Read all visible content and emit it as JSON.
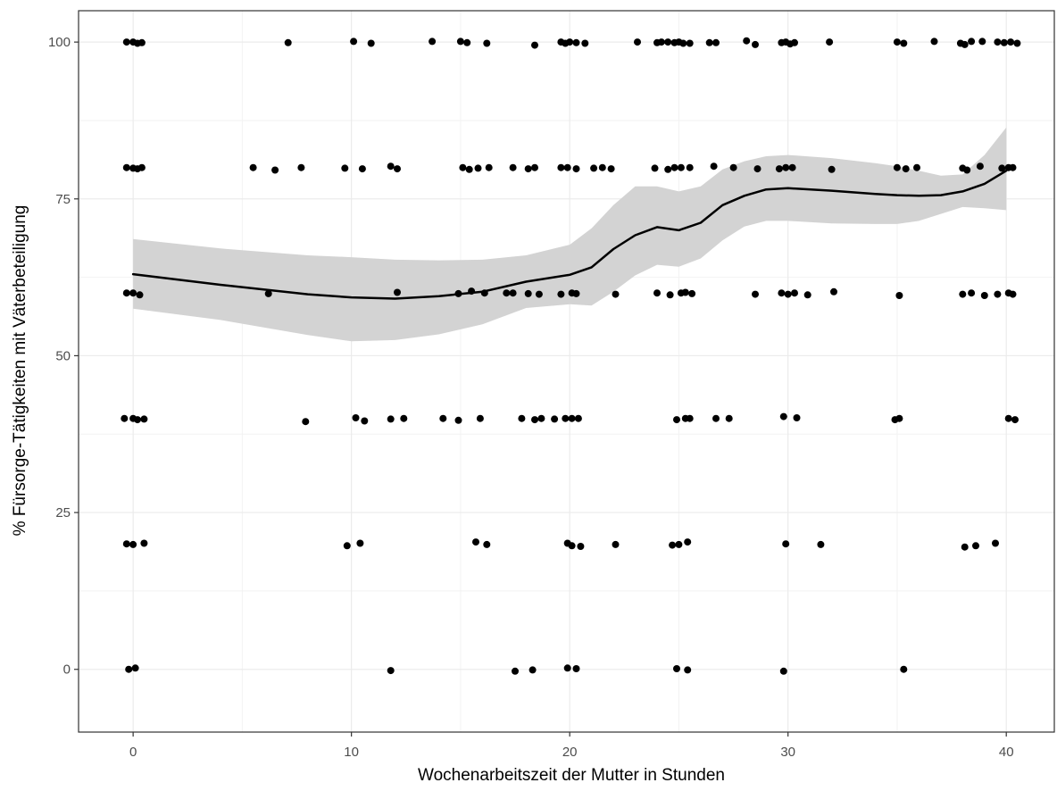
{
  "chart_data": {
    "type": "scatter",
    "title": "",
    "xlabel": "Wochenarbeitszeit der Mutter in Stunden",
    "ylabel": "% Fürsorge-Tätigkeiten mit Väterbeteiligung",
    "xlim": [
      -2.5,
      42.2
    ],
    "ylim": [
      -10,
      105
    ],
    "x_ticks": [
      0,
      10,
      20,
      30,
      40
    ],
    "x_tick_labels": [
      "0",
      "10",
      "20",
      "30",
      "40"
    ],
    "y_ticks": [
      0,
      25,
      50,
      75,
      100
    ],
    "y_tick_labels": [
      "0",
      "25",
      "50",
      "75",
      "100"
    ],
    "grid": true,
    "legend": "none",
    "colors": {
      "points": "#000000",
      "smooth_line": "#000000",
      "confidence_band": "#d3d3d3",
      "grid_major": "#ebebeb",
      "grid_minor": "#f2f2f2",
      "panel_border": "#333333"
    },
    "series": [
      {
        "type": "scatter",
        "points": [
          [
            -0.3,
            100
          ],
          [
            0,
            100
          ],
          [
            0.2,
            99.8
          ],
          [
            0.4,
            99.9
          ],
          [
            7.1,
            99.9
          ],
          [
            10.1,
            100.1
          ],
          [
            10.9,
            99.8
          ],
          [
            13.7,
            100.1
          ],
          [
            15,
            100.1
          ],
          [
            15.3,
            99.9
          ],
          [
            16.2,
            99.8
          ],
          [
            18.4,
            99.5
          ],
          [
            19.6,
            100
          ],
          [
            19.8,
            99.8
          ],
          [
            20,
            100
          ],
          [
            20.3,
            99.9
          ],
          [
            20.7,
            99.8
          ],
          [
            23.1,
            100
          ],
          [
            24,
            99.9
          ],
          [
            24.2,
            100
          ],
          [
            24.5,
            100
          ],
          [
            24.8,
            99.9
          ],
          [
            25,
            100
          ],
          [
            25.2,
            99.8
          ],
          [
            25.5,
            99.8
          ],
          [
            26.4,
            99.9
          ],
          [
            26.7,
            99.9
          ],
          [
            28.1,
            100.2
          ],
          [
            28.5,
            99.6
          ],
          [
            29.7,
            99.9
          ],
          [
            29.9,
            100
          ],
          [
            30.1,
            99.7
          ],
          [
            30.3,
            99.9
          ],
          [
            31.9,
            100
          ],
          [
            35,
            100
          ],
          [
            35.3,
            99.8
          ],
          [
            36.7,
            100.1
          ],
          [
            37.9,
            99.8
          ],
          [
            38.1,
            99.6
          ],
          [
            38.4,
            100.1
          ],
          [
            38.9,
            100.1
          ],
          [
            39.6,
            100
          ],
          [
            39.9,
            99.9
          ],
          [
            40.2,
            100
          ],
          [
            40.5,
            99.8
          ],
          [
            -0.3,
            80
          ],
          [
            0,
            79.9
          ],
          [
            0.2,
            79.8
          ],
          [
            0.4,
            80
          ],
          [
            5.5,
            80
          ],
          [
            6.5,
            79.6
          ],
          [
            7.7,
            80
          ],
          [
            9.7,
            79.9
          ],
          [
            10.5,
            79.8
          ],
          [
            11.8,
            80.2
          ],
          [
            12.1,
            79.8
          ],
          [
            15.1,
            80
          ],
          [
            15.4,
            79.7
          ],
          [
            15.8,
            79.9
          ],
          [
            16.3,
            80
          ],
          [
            17.4,
            80
          ],
          [
            18.1,
            79.8
          ],
          [
            18.4,
            80
          ],
          [
            19.6,
            80
          ],
          [
            19.9,
            80
          ],
          [
            20.3,
            79.8
          ],
          [
            21.1,
            79.9
          ],
          [
            21.5,
            80
          ],
          [
            21.9,
            79.8
          ],
          [
            23.9,
            79.9
          ],
          [
            24.5,
            79.7
          ],
          [
            24.8,
            80
          ],
          [
            25.1,
            80
          ],
          [
            25.5,
            80
          ],
          [
            26.6,
            80.2
          ],
          [
            27.5,
            80
          ],
          [
            28.6,
            79.8
          ],
          [
            29.6,
            79.8
          ],
          [
            29.9,
            80
          ],
          [
            30.2,
            80
          ],
          [
            32,
            79.7
          ],
          [
            35,
            80
          ],
          [
            35.4,
            79.8
          ],
          [
            35.9,
            80
          ],
          [
            38,
            79.9
          ],
          [
            38.2,
            79.6
          ],
          [
            38.8,
            80.2
          ],
          [
            39.8,
            79.9
          ],
          [
            40.1,
            80
          ],
          [
            40.3,
            80
          ],
          [
            -0.3,
            60
          ],
          [
            0,
            60
          ],
          [
            0.3,
            59.7
          ],
          [
            6.2,
            59.9
          ],
          [
            12.1,
            60.1
          ],
          [
            14.9,
            59.9
          ],
          [
            15.5,
            60.3
          ],
          [
            16.1,
            60
          ],
          [
            17.1,
            60
          ],
          [
            17.4,
            60
          ],
          [
            18.1,
            59.9
          ],
          [
            18.6,
            59.8
          ],
          [
            19.6,
            59.8
          ],
          [
            20.1,
            60
          ],
          [
            20.3,
            59.9
          ],
          [
            22.1,
            59.8
          ],
          [
            24,
            60
          ],
          [
            24.6,
            59.7
          ],
          [
            25.1,
            60
          ],
          [
            25.3,
            60.1
          ],
          [
            25.6,
            59.9
          ],
          [
            28.5,
            59.8
          ],
          [
            29.7,
            60
          ],
          [
            30,
            59.8
          ],
          [
            30.3,
            60
          ],
          [
            30.9,
            59.7
          ],
          [
            32.1,
            60.2
          ],
          [
            35.1,
            59.6
          ],
          [
            38,
            59.8
          ],
          [
            38.4,
            60
          ],
          [
            39,
            59.6
          ],
          [
            39.6,
            59.8
          ],
          [
            40.1,
            60
          ],
          [
            40.3,
            59.8
          ],
          [
            -0.4,
            40
          ],
          [
            0,
            40
          ],
          [
            0.2,
            39.8
          ],
          [
            0.5,
            39.9
          ],
          [
            7.9,
            39.5
          ],
          [
            10.2,
            40.1
          ],
          [
            10.6,
            39.6
          ],
          [
            11.8,
            39.9
          ],
          [
            12.4,
            40
          ],
          [
            14.2,
            40
          ],
          [
            14.9,
            39.7
          ],
          [
            15.9,
            40
          ],
          [
            17.8,
            40
          ],
          [
            18.4,
            39.8
          ],
          [
            18.7,
            40
          ],
          [
            19.3,
            39.9
          ],
          [
            19.8,
            40
          ],
          [
            20.1,
            40
          ],
          [
            20.4,
            40
          ],
          [
            24.9,
            39.8
          ],
          [
            25.3,
            40
          ],
          [
            25.5,
            40
          ],
          [
            26.7,
            40
          ],
          [
            27.3,
            40
          ],
          [
            29.8,
            40.3
          ],
          [
            30.4,
            40.1
          ],
          [
            34.9,
            39.8
          ],
          [
            35.1,
            40
          ],
          [
            40.1,
            40
          ],
          [
            40.4,
            39.8
          ],
          [
            -0.3,
            20
          ],
          [
            0,
            19.9
          ],
          [
            0.5,
            20.1
          ],
          [
            9.8,
            19.7
          ],
          [
            10.4,
            20.1
          ],
          [
            15.7,
            20.3
          ],
          [
            16.2,
            19.9
          ],
          [
            19.9,
            20.1
          ],
          [
            20.1,
            19.7
          ],
          [
            20.5,
            19.6
          ],
          [
            22.1,
            19.9
          ],
          [
            24.7,
            19.8
          ],
          [
            25,
            19.9
          ],
          [
            25.4,
            20.3
          ],
          [
            29.9,
            20
          ],
          [
            31.5,
            19.9
          ],
          [
            38.1,
            19.5
          ],
          [
            38.6,
            19.7
          ],
          [
            39.5,
            20.1
          ],
          [
            -0.2,
            0
          ],
          [
            0.1,
            0.2
          ],
          [
            11.8,
            -0.2
          ],
          [
            17.5,
            -0.3
          ],
          [
            18.3,
            -0.1
          ],
          [
            19.9,
            0.2
          ],
          [
            20.3,
            0.1
          ],
          [
            24.9,
            0.1
          ],
          [
            25.4,
            -0.1
          ],
          [
            29.8,
            -0.3
          ],
          [
            35.3,
            0
          ]
        ]
      },
      {
        "type": "smooth",
        "line": [
          [
            0,
            63.0
          ],
          [
            4,
            61.3
          ],
          [
            8,
            59.8
          ],
          [
            10,
            59.3
          ],
          [
            12,
            59.1
          ],
          [
            14,
            59.5
          ],
          [
            16,
            60.2
          ],
          [
            18,
            61.8
          ],
          [
            20,
            62.9
          ],
          [
            21,
            64.1
          ],
          [
            22,
            67.0
          ],
          [
            23,
            69.2
          ],
          [
            24,
            70.5
          ],
          [
            25,
            70.0
          ],
          [
            26,
            71.2
          ],
          [
            27,
            74.0
          ],
          [
            28,
            75.5
          ],
          [
            29,
            76.5
          ],
          [
            30,
            76.7
          ],
          [
            32,
            76.3
          ],
          [
            34,
            75.8
          ],
          [
            35,
            75.6
          ],
          [
            36,
            75.5
          ],
          [
            37,
            75.6
          ],
          [
            38,
            76.2
          ],
          [
            39,
            77.4
          ],
          [
            40,
            79.5
          ]
        ],
        "band_upper": [
          [
            0,
            68.6
          ],
          [
            4,
            67.1
          ],
          [
            8,
            66.0
          ],
          [
            10,
            65.7
          ],
          [
            12,
            65.3
          ],
          [
            14,
            65.2
          ],
          [
            16,
            65.3
          ],
          [
            18,
            66.0
          ],
          [
            20,
            67.7
          ],
          [
            21,
            70.3
          ],
          [
            22,
            74.0
          ],
          [
            23,
            77.0
          ],
          [
            24,
            77.0
          ],
          [
            25,
            76.2
          ],
          [
            26,
            77.0
          ],
          [
            27,
            79.7
          ],
          [
            28,
            81.0
          ],
          [
            29,
            81.8
          ],
          [
            30,
            82.0
          ],
          [
            32,
            81.5
          ],
          [
            34,
            80.7
          ],
          [
            35,
            80.2
          ],
          [
            36,
            79.5
          ],
          [
            37,
            78.7
          ],
          [
            38,
            78.9
          ],
          [
            39,
            82.0
          ],
          [
            40,
            86.4
          ]
        ],
        "band_lower": [
          [
            0,
            57.5
          ],
          [
            4,
            55.7
          ],
          [
            8,
            53.3
          ],
          [
            10,
            52.3
          ],
          [
            12,
            52.5
          ],
          [
            14,
            53.4
          ],
          [
            16,
            55.0
          ],
          [
            18,
            57.6
          ],
          [
            20,
            58.2
          ],
          [
            21,
            58.0
          ],
          [
            22,
            60.2
          ],
          [
            23,
            62.8
          ],
          [
            24,
            64.5
          ],
          [
            25,
            64.2
          ],
          [
            26,
            65.5
          ],
          [
            27,
            68.4
          ],
          [
            28,
            70.6
          ],
          [
            29,
            71.5
          ],
          [
            30,
            71.5
          ],
          [
            32,
            71.1
          ],
          [
            34,
            71.0
          ],
          [
            35,
            71.0
          ],
          [
            36,
            71.5
          ],
          [
            37,
            72.6
          ],
          [
            38,
            73.7
          ],
          [
            39,
            73.5
          ],
          [
            40,
            73.2
          ]
        ]
      }
    ]
  }
}
